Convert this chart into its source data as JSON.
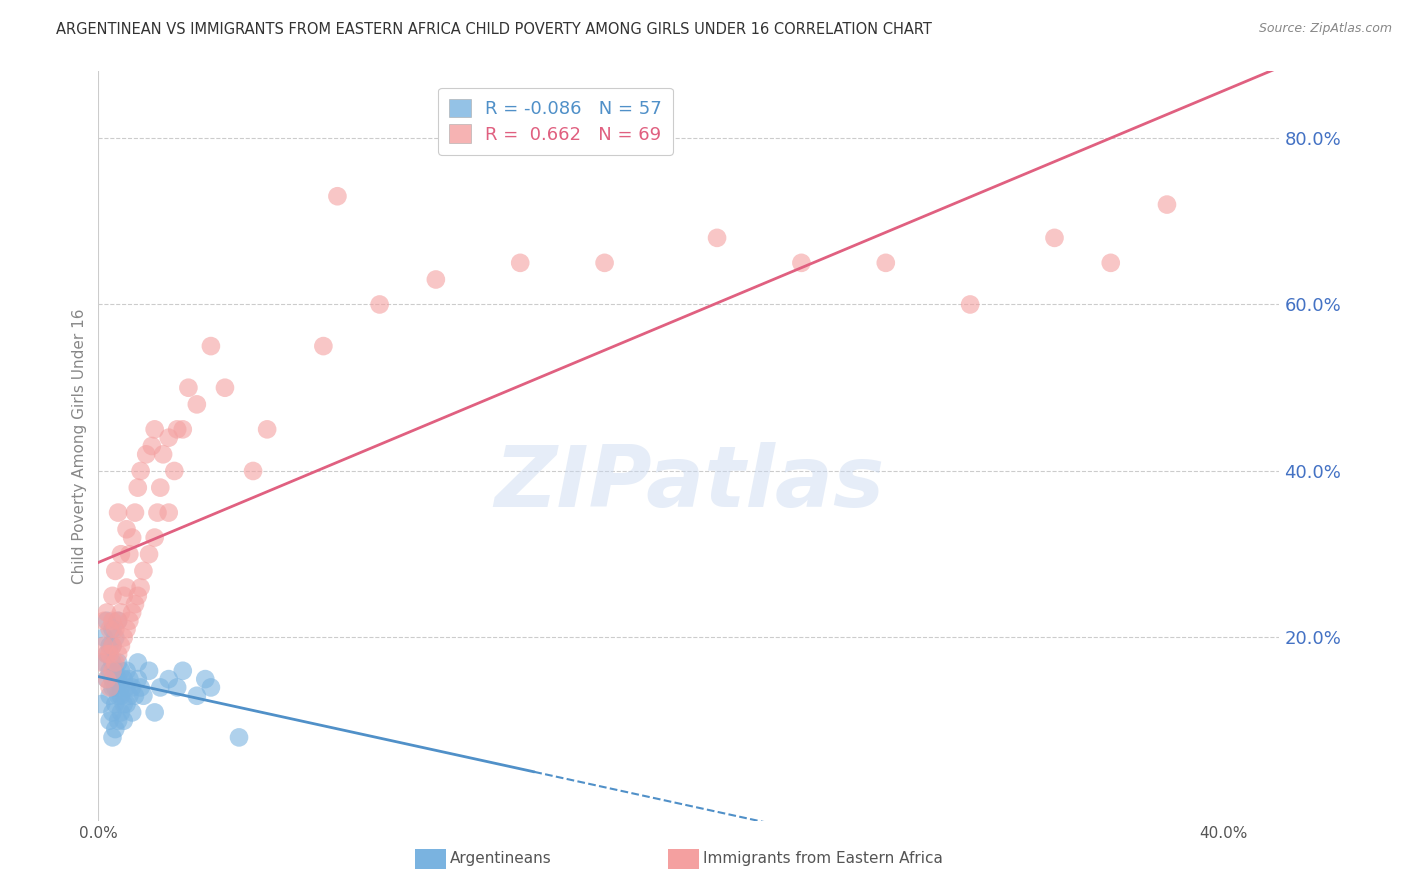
{
  "title": "ARGENTINEAN VS IMMIGRANTS FROM EASTERN AFRICA CHILD POVERTY AMONG GIRLS UNDER 16 CORRELATION CHART",
  "source": "Source: ZipAtlas.com",
  "ylabel": "Child Poverty Among Girls Under 16",
  "xlim": [
    0.0,
    0.42
  ],
  "ylim": [
    -0.02,
    0.88
  ],
  "xticks": [
    0.0,
    0.1,
    0.2,
    0.3,
    0.4
  ],
  "xtick_labels": [
    "0.0%",
    "",
    "",
    "",
    "40.0%"
  ],
  "yticks_right": [
    0.2,
    0.4,
    0.6,
    0.8
  ],
  "ytick_labels_right": [
    "20.0%",
    "40.0%",
    "60.0%",
    "80.0%"
  ],
  "blue_R": -0.086,
  "blue_N": 57,
  "pink_R": 0.662,
  "pink_N": 69,
  "blue_color": "#7ab3e0",
  "pink_color": "#f4a0a0",
  "blue_label": "Argentineans",
  "pink_label": "Immigrants from Eastern Africa",
  "watermark": "ZIPatlas",
  "title_fontsize": 10.5,
  "legend_fontsize": 13,
  "axis_label_fontsize": 11,
  "tick_fontsize": 11,
  "background_color": "#ffffff",
  "blue_line_color": "#5090c8",
  "pink_line_color": "#e06080",
  "blue_x": [
    0.001,
    0.002,
    0.002,
    0.003,
    0.003,
    0.003,
    0.004,
    0.004,
    0.004,
    0.004,
    0.005,
    0.005,
    0.005,
    0.005,
    0.005,
    0.005,
    0.005,
    0.006,
    0.006,
    0.006,
    0.006,
    0.006,
    0.006,
    0.007,
    0.007,
    0.007,
    0.007,
    0.007,
    0.008,
    0.008,
    0.008,
    0.008,
    0.009,
    0.009,
    0.009,
    0.01,
    0.01,
    0.01,
    0.011,
    0.011,
    0.012,
    0.012,
    0.013,
    0.014,
    0.014,
    0.015,
    0.016,
    0.018,
    0.02,
    0.022,
    0.025,
    0.028,
    0.03,
    0.035,
    0.038,
    0.04,
    0.05
  ],
  "blue_y": [
    0.12,
    0.17,
    0.2,
    0.15,
    0.18,
    0.22,
    0.1,
    0.13,
    0.16,
    0.19,
    0.08,
    0.11,
    0.14,
    0.15,
    0.17,
    0.19,
    0.21,
    0.09,
    0.12,
    0.14,
    0.15,
    0.16,
    0.2,
    0.1,
    0.13,
    0.15,
    0.17,
    0.22,
    0.11,
    0.13,
    0.14,
    0.16,
    0.1,
    0.12,
    0.15,
    0.12,
    0.14,
    0.16,
    0.13,
    0.15,
    0.11,
    0.14,
    0.13,
    0.15,
    0.17,
    0.14,
    0.13,
    0.16,
    0.11,
    0.14,
    0.15,
    0.14,
    0.16,
    0.13,
    0.15,
    0.14,
    0.08
  ],
  "pink_x": [
    0.001,
    0.002,
    0.002,
    0.003,
    0.003,
    0.003,
    0.004,
    0.004,
    0.004,
    0.005,
    0.005,
    0.005,
    0.005,
    0.006,
    0.006,
    0.006,
    0.007,
    0.007,
    0.007,
    0.008,
    0.008,
    0.008,
    0.009,
    0.009,
    0.01,
    0.01,
    0.01,
    0.011,
    0.011,
    0.012,
    0.012,
    0.013,
    0.013,
    0.014,
    0.014,
    0.015,
    0.015,
    0.016,
    0.017,
    0.018,
    0.019,
    0.02,
    0.02,
    0.021,
    0.022,
    0.023,
    0.025,
    0.025,
    0.027,
    0.028,
    0.03,
    0.032,
    0.035,
    0.04,
    0.045,
    0.055,
    0.06,
    0.08,
    0.1,
    0.12,
    0.15,
    0.18,
    0.22,
    0.25,
    0.28,
    0.31,
    0.34,
    0.36,
    0.38
  ],
  "pink_y": [
    0.17,
    0.19,
    0.22,
    0.15,
    0.18,
    0.23,
    0.14,
    0.18,
    0.21,
    0.16,
    0.19,
    0.22,
    0.25,
    0.17,
    0.21,
    0.28,
    0.18,
    0.22,
    0.35,
    0.19,
    0.23,
    0.3,
    0.2,
    0.25,
    0.21,
    0.26,
    0.33,
    0.22,
    0.3,
    0.23,
    0.32,
    0.24,
    0.35,
    0.25,
    0.38,
    0.26,
    0.4,
    0.28,
    0.42,
    0.3,
    0.43,
    0.32,
    0.45,
    0.35,
    0.38,
    0.42,
    0.35,
    0.44,
    0.4,
    0.45,
    0.45,
    0.5,
    0.48,
    0.55,
    0.5,
    0.4,
    0.45,
    0.55,
    0.6,
    0.63,
    0.65,
    0.65,
    0.68,
    0.65,
    0.65,
    0.6,
    0.68,
    0.65,
    0.72
  ],
  "pink_outlier_x": [
    0.085
  ],
  "pink_outlier_y": [
    0.73
  ]
}
